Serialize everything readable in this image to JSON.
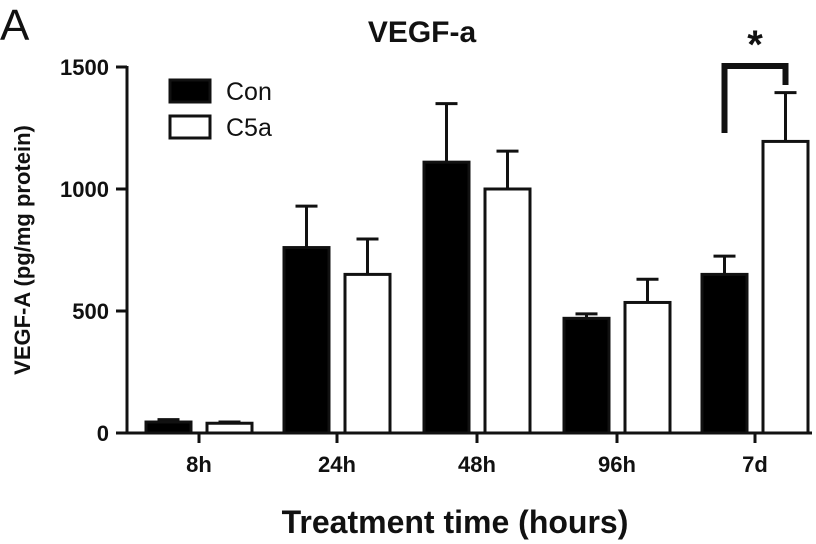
{
  "panel_label": "A",
  "chart_data": {
    "type": "bar",
    "title": "VEGF-a",
    "xlabel": "Treatment time (hours)",
    "ylabel": "VEGF-A (pg/mg protein)",
    "categories": [
      "8h",
      "24h",
      "48h",
      "96h",
      "7d"
    ],
    "ylim": [
      0,
      1500
    ],
    "yticks": [
      0,
      500,
      1000,
      1500
    ],
    "grid": false,
    "legend_position": "top-left",
    "series": [
      {
        "name": "Con",
        "color": "#000000",
        "fill": "solid",
        "values": [
          45,
          760,
          1110,
          470,
          650
        ],
        "errors": [
          10,
          170,
          240,
          18,
          75
        ]
      },
      {
        "name": "C5a",
        "color": "#ffffff",
        "fill": "open",
        "values": [
          40,
          650,
          1000,
          535,
          1195
        ],
        "errors": [
          5,
          145,
          155,
          95,
          200
        ]
      }
    ],
    "annotations": [
      {
        "text": "*",
        "category": "7d",
        "type": "significance-bracket"
      }
    ]
  }
}
